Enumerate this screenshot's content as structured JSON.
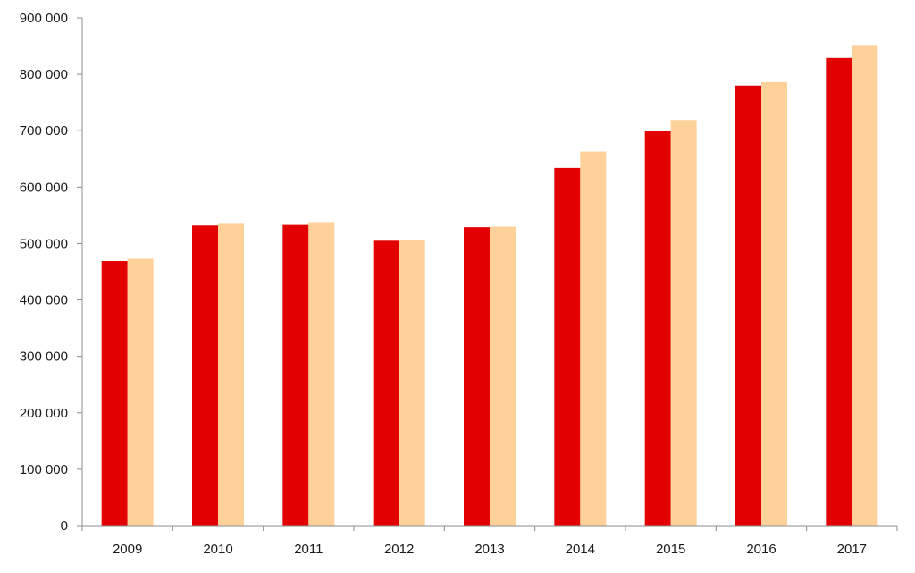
{
  "chart_data": {
    "type": "bar",
    "categories": [
      "2009",
      "2010",
      "2011",
      "2012",
      "2013",
      "2014",
      "2015",
      "2016",
      "2017"
    ],
    "series": [
      {
        "color": "#e30000",
        "values": [
          469000,
          532000,
          533000,
          505000,
          529000,
          634000,
          700000,
          780000,
          829000
        ]
      },
      {
        "color": "#ffd19a",
        "values": [
          473000,
          535000,
          538000,
          507000,
          530000,
          663000,
          719000,
          786000,
          852000
        ]
      }
    ],
    "ylim": [
      0,
      900000
    ],
    "yticks": [
      0,
      100000,
      200000,
      300000,
      400000,
      500000,
      600000,
      700000,
      800000,
      900000
    ],
    "ytick_labels": [
      "0",
      "100 000",
      "200 000",
      "300 000",
      "400 000",
      "500 000",
      "600 000",
      "700 000",
      "800 000",
      "900 000"
    ],
    "grid": false,
    "legend": "none"
  }
}
